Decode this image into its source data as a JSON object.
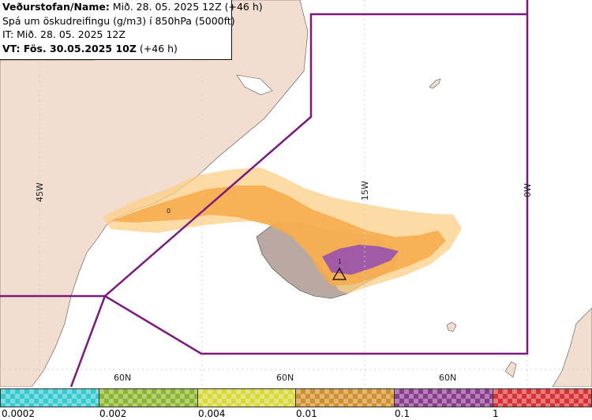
{
  "info": {
    "line1_bold": "Veðurstofan/Name:",
    "line1_rest": " Mið. 28. 05. 2025 12Z (+46 h)",
    "line2": "Spá um öskudreifingu (g/m3) í 850hPa (5000ft)",
    "line3": "IT: Mið. 28. 05. 2025 12Z",
    "line4_bold": "VT: Fös. 30.05.2025 10Z",
    "line4_rest": " (+46 h)"
  },
  "grid_labels": {
    "lon_45w": "45W",
    "lon_15w": "15W",
    "lon_0w": "0W",
    "lat_60n_a": "60N",
    "lat_60n_b": "60N",
    "lat_60n_c": "60N"
  },
  "contour_labels": {
    "c0": "0",
    "c1": "1"
  },
  "legend": {
    "ticks": [
      "0.0002",
      "0.002",
      "0.004",
      "0.01",
      "0.1",
      "1"
    ],
    "colors": [
      "#38c9cf",
      "#8bb52e",
      "#d8d83a",
      "#d1902e",
      "#8a3d8c",
      "#d83236"
    ]
  },
  "colors": {
    "land": "#f2ddd0",
    "boundary": "#7a1a7e",
    "ash_light": "#fbcf86",
    "ash_orange": "#f7a94a",
    "ash_purple": "#a25aa6"
  }
}
